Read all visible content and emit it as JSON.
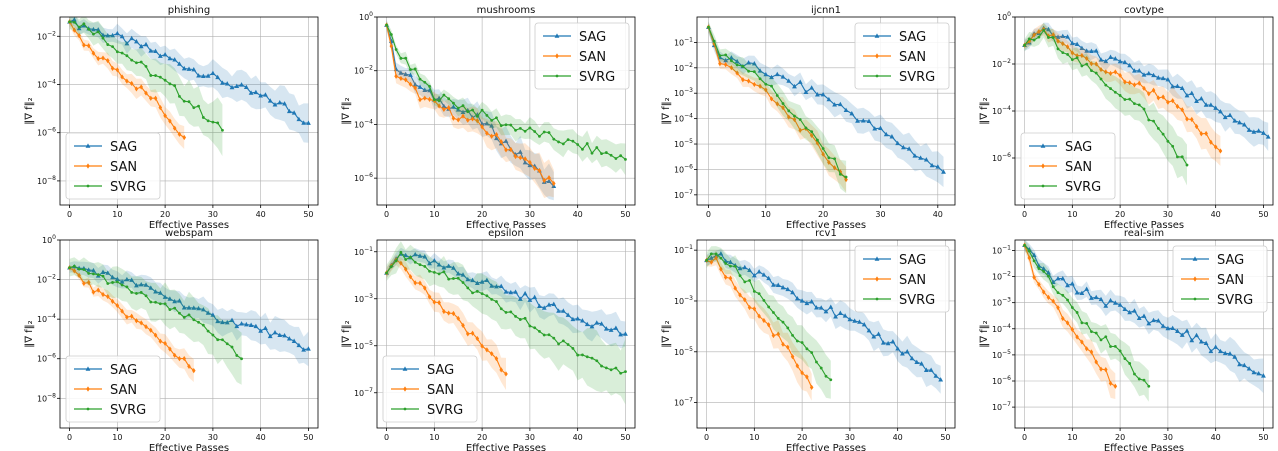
{
  "figure": {
    "xlabel": "Effective Passes",
    "ylabel": "‖∇ f‖₂",
    "legend_entries": [
      "SAG",
      "SAN",
      "SVRG"
    ]
  },
  "colors": {
    "SAG": "#1f77b4",
    "SAN": "#ff7f0e",
    "SVRG": "#2ca02c",
    "grid": "#b0b0b0"
  },
  "chart_data": [
    {
      "type": "line",
      "title": "phishing",
      "xlabel": "Effective Passes",
      "ylabel": "‖∇ f‖₂",
      "yscale": "log",
      "xlim": [
        -2,
        52
      ],
      "ylim_log10": [
        -9,
        -1.2
      ],
      "xticks": [
        0,
        10,
        20,
        30,
        40,
        50
      ],
      "yticks_log10": [
        -2,
        -4,
        -6,
        -8
      ],
      "legend": "lower-left",
      "grid": true,
      "series": [
        {
          "name": "SAG",
          "end_x": 50,
          "points": [
            [
              0,
              -1.4
            ],
            [
              5,
              -1.7
            ],
            [
              15,
              -2.4
            ],
            [
              25,
              -3.3
            ],
            [
              35,
              -4.1
            ],
            [
              45,
              -4.9
            ],
            [
              50,
              -5.6
            ]
          ],
          "band": 0.7
        },
        {
          "name": "SAN",
          "end_x": 24,
          "points": [
            [
              0,
              -1.4
            ],
            [
              3,
              -2.4
            ],
            [
              10,
              -3.4
            ],
            [
              18,
              -4.7
            ],
            [
              24,
              -6.2
            ]
          ],
          "band": 0.5
        },
        {
          "name": "SVRG",
          "end_x": 32,
          "points": [
            [
              0,
              -1.4
            ],
            [
              4,
              -1.6
            ],
            [
              12,
              -2.8
            ],
            [
              22,
              -4.2
            ],
            [
              32,
              -5.9
            ]
          ],
          "band": 0.9
        }
      ]
    },
    {
      "type": "line",
      "title": "mushrooms",
      "xlabel": "Effective Passes",
      "ylabel": "‖∇ f‖₂",
      "yscale": "log",
      "xlim": [
        -2,
        52
      ],
      "ylim_log10": [
        -7,
        0
      ],
      "xticks": [
        0,
        10,
        20,
        30,
        40,
        50
      ],
      "yticks_log10": [
        0,
        -2,
        -4,
        -6
      ],
      "legend": "upper-right",
      "grid": true,
      "series": [
        {
          "name": "SAG",
          "end_x": 35,
          "points": [
            [
              0,
              -0.3
            ],
            [
              2,
              -1.8
            ],
            [
              8,
              -2.8
            ],
            [
              20,
              -3.9
            ],
            [
              35,
              -6.3
            ]
          ],
          "band": 0.6
        },
        {
          "name": "SAN",
          "end_x": 35,
          "points": [
            [
              0,
              -0.3
            ],
            [
              2,
              -2.1
            ],
            [
              8,
              -3.1
            ],
            [
              20,
              -4.1
            ],
            [
              35,
              -6.2
            ]
          ],
          "band": 0.6
        },
        {
          "name": "SVRG",
          "end_x": 50,
          "points": [
            [
              0,
              -0.3
            ],
            [
              3,
              -1.5
            ],
            [
              10,
              -2.9
            ],
            [
              25,
              -4.0
            ],
            [
              50,
              -5.3
            ]
          ],
          "band": 0.5
        }
      ]
    },
    {
      "type": "line",
      "title": "ijcnn1",
      "xlabel": "Effective Passes",
      "ylabel": "‖∇ f‖₂",
      "yscale": "log",
      "xlim": [
        -2,
        43
      ],
      "ylim_log10": [
        -7.4,
        0
      ],
      "xticks": [
        0,
        10,
        20,
        30,
        40
      ],
      "yticks_log10": [
        -1,
        -2,
        -3,
        -4,
        -5,
        -6,
        -7
      ],
      "legend": "upper-right",
      "grid": true,
      "series": [
        {
          "name": "SAG",
          "end_x": 41,
          "points": [
            [
              0,
              -0.4
            ],
            [
              2,
              -1.6
            ],
            [
              8,
              -2.0
            ],
            [
              20,
              -3.1
            ],
            [
              30,
              -4.5
            ],
            [
              41,
              -6.1
            ]
          ],
          "band": 0.6
        },
        {
          "name": "SAN",
          "end_x": 24,
          "points": [
            [
              0,
              -0.4
            ],
            [
              2,
              -1.8
            ],
            [
              8,
              -2.6
            ],
            [
              16,
              -4.3
            ],
            [
              24,
              -6.4
            ]
          ],
          "band": 0.5
        },
        {
          "name": "SVRG",
          "end_x": 24,
          "points": [
            [
              0,
              -0.4
            ],
            [
              2,
              -1.5
            ],
            [
              8,
              -2.1
            ],
            [
              16,
              -4.1
            ],
            [
              24,
              -6.3
            ]
          ],
          "band": 0.6
        }
      ]
    },
    {
      "type": "line",
      "title": "covtype",
      "xlabel": "Effective Passes",
      "ylabel": "‖∇ f‖₂",
      "yscale": "log",
      "xlim": [
        -2,
        52
      ],
      "ylim_log10": [
        -8,
        0
      ],
      "xticks": [
        0,
        10,
        20,
        30,
        40,
        50
      ],
      "yticks_log10": [
        0,
        -2,
        -4,
        -6
      ],
      "legend": "lower-left",
      "grid": true,
      "series": [
        {
          "name": "SAG",
          "end_x": 51,
          "points": [
            [
              0,
              -1.2
            ],
            [
              4,
              -0.5
            ],
            [
              15,
              -1.6
            ],
            [
              30,
              -2.8
            ],
            [
              40,
              -4.0
            ],
            [
              51,
              -5.1
            ]
          ],
          "band": 0.6
        },
        {
          "name": "SAN",
          "end_x": 41,
          "points": [
            [
              0,
              -1.2
            ],
            [
              4,
              -0.6
            ],
            [
              15,
              -2.1
            ],
            [
              30,
              -3.5
            ],
            [
              41,
              -5.7
            ]
          ],
          "band": 0.6
        },
        {
          "name": "SVRG",
          "end_x": 34,
          "points": [
            [
              0,
              -1.2
            ],
            [
              4,
              -0.7
            ],
            [
              15,
              -2.5
            ],
            [
              25,
              -4.0
            ],
            [
              34,
              -6.3
            ]
          ],
          "band": 0.8
        }
      ]
    },
    {
      "type": "line",
      "title": "webspam",
      "xlabel": "Effective Passes",
      "ylabel": "‖∇ f‖₂",
      "yscale": "log",
      "xlim": [
        -2,
        52
      ],
      "ylim_log10": [
        -9.5,
        0
      ],
      "xticks": [
        0,
        10,
        20,
        30,
        40,
        50
      ],
      "yticks_log10": [
        0,
        -2,
        -4,
        -6,
        -8
      ],
      "legend": "lower-left",
      "grid": true,
      "series": [
        {
          "name": "SAG",
          "end_x": 50,
          "points": [
            [
              0,
              -1.4
            ],
            [
              4,
              -1.5
            ],
            [
              15,
              -2.3
            ],
            [
              30,
              -3.9
            ],
            [
              40,
              -4.5
            ],
            [
              50,
              -5.5
            ]
          ],
          "band": 0.8
        },
        {
          "name": "SAN",
          "end_x": 26,
          "points": [
            [
              0,
              -1.4
            ],
            [
              3,
              -2.1
            ],
            [
              10,
              -3.4
            ],
            [
              18,
              -4.8
            ],
            [
              26,
              -6.6
            ]
          ],
          "band": 0.5
        },
        {
          "name": "SVRG",
          "end_x": 36,
          "points": [
            [
              0,
              -1.4
            ],
            [
              4,
              -1.6
            ],
            [
              15,
              -2.8
            ],
            [
              28,
              -4.3
            ],
            [
              36,
              -6.0
            ]
          ],
          "band": 1.3
        }
      ]
    },
    {
      "type": "line",
      "title": "epsilon",
      "xlabel": "Effective Passes",
      "ylabel": "‖∇ f‖₂",
      "yscale": "log",
      "xlim": [
        -2,
        52
      ],
      "ylim_log10": [
        -8.5,
        -0.5
      ],
      "xticks": [
        0,
        10,
        20,
        30,
        40,
        50
      ],
      "yticks_log10": [
        -1,
        -3,
        -5,
        -7
      ],
      "legend": "lower-left",
      "grid": true,
      "series": [
        {
          "name": "SAG",
          "end_x": 50,
          "points": [
            [
              0,
              -1.9
            ],
            [
              3,
              -1.0
            ],
            [
              15,
              -1.9
            ],
            [
              30,
              -3.0
            ],
            [
              40,
              -3.8
            ],
            [
              50,
              -4.5
            ]
          ],
          "band": 0.6
        },
        {
          "name": "SAN",
          "end_x": 25,
          "points": [
            [
              0,
              -1.9
            ],
            [
              2,
              -1.2
            ],
            [
              10,
              -3.1
            ],
            [
              18,
              -4.5
            ],
            [
              25,
              -6.2
            ]
          ],
          "band": 0.6
        },
        {
          "name": "SVRG",
          "end_x": 50,
          "points": [
            [
              0,
              -1.9
            ],
            [
              3,
              -1.1
            ],
            [
              15,
              -2.3
            ],
            [
              30,
              -4.1
            ],
            [
              40,
              -5.3
            ],
            [
              50,
              -6.1
            ]
          ],
          "band": 1.2
        }
      ]
    },
    {
      "type": "line",
      "title": "rcv1",
      "xlabel": "Effective Passes",
      "ylabel": "‖∇ f‖₂",
      "yscale": "log",
      "xlim": [
        -2,
        52
      ],
      "ylim_log10": [
        -8,
        -0.6
      ],
      "xticks": [
        0,
        10,
        20,
        30,
        40,
        50
      ],
      "yticks_log10": [
        -1,
        -3,
        -5,
        -7
      ],
      "legend": "upper-right",
      "grid": true,
      "series": [
        {
          "name": "SAG",
          "end_x": 49,
          "points": [
            [
              0,
              -1.4
            ],
            [
              2,
              -1.2
            ],
            [
              10,
              -1.9
            ],
            [
              25,
              -3.3
            ],
            [
              40,
              -4.8
            ],
            [
              49,
              -6.1
            ]
          ],
          "band": 0.6
        },
        {
          "name": "SAN",
          "end_x": 22,
          "points": [
            [
              0,
              -1.4
            ],
            [
              2,
              -1.4
            ],
            [
              8,
              -3.0
            ],
            [
              15,
              -4.4
            ],
            [
              22,
              -6.4
            ]
          ],
          "band": 0.6
        },
        {
          "name": "SVRG",
          "end_x": 26,
          "points": [
            [
              0,
              -1.4
            ],
            [
              2,
              -1.1
            ],
            [
              10,
              -2.5
            ],
            [
              18,
              -4.3
            ],
            [
              26,
              -6.1
            ]
          ],
          "band": 0.8
        }
      ]
    },
    {
      "type": "line",
      "title": "real-sim",
      "xlabel": "Effective Passes",
      "ylabel": "‖∇ f‖₂",
      "yscale": "log",
      "xlim": [
        -2,
        52
      ],
      "ylim_log10": [
        -7.8,
        -0.6
      ],
      "xticks": [
        0,
        10,
        20,
        30,
        40,
        50
      ],
      "yticks_log10": [
        -1,
        -2,
        -3,
        -4,
        -5,
        -6,
        -7
      ],
      "legend": "upper-right",
      "grid": true,
      "series": [
        {
          "name": "SAG",
          "end_x": 50,
          "points": [
            [
              0,
              -0.8
            ],
            [
              5,
              -2.0
            ],
            [
              20,
              -3.2
            ],
            [
              35,
              -4.3
            ],
            [
              45,
              -5.3
            ],
            [
              50,
              -5.8
            ]
          ],
          "band": 0.6
        },
        {
          "name": "SAN",
          "end_x": 19,
          "points": [
            [
              0,
              -0.8
            ],
            [
              3,
              -2.4
            ],
            [
              10,
              -4.0
            ],
            [
              19,
              -6.2
            ]
          ],
          "band": 0.5
        },
        {
          "name": "SVRG",
          "end_x": 26,
          "points": [
            [
              0,
              -0.8
            ],
            [
              4,
              -1.8
            ],
            [
              12,
              -3.6
            ],
            [
              20,
              -5.0
            ],
            [
              26,
              -6.2
            ]
          ],
          "band": 0.6
        }
      ]
    }
  ]
}
